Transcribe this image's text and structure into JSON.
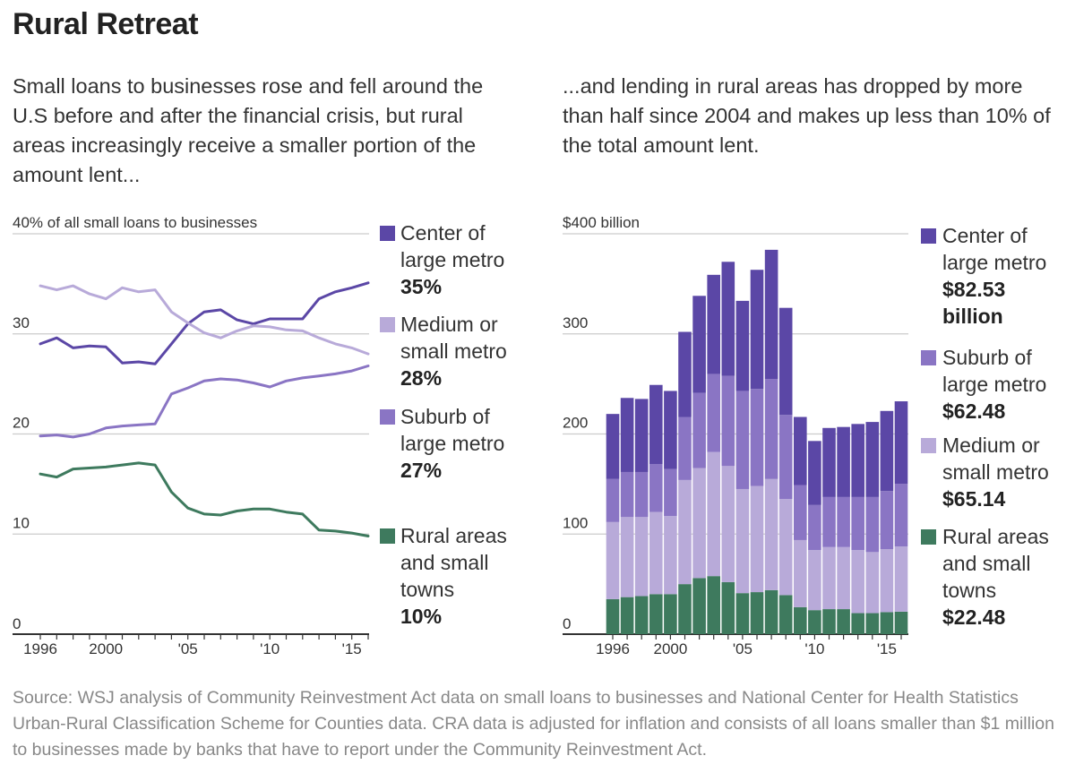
{
  "title": "Rural Retreat",
  "intro_left": "Small loans to businesses rose and fell around the U.S before and after the financial crisis, but rural areas increasingly receive a smaller portion of the amount lent...",
  "intro_right": "...and lending in rural areas has dropped by more than half since 2004 and makes up less than 10% of the total amount lent.",
  "source": "Source: WSJ analysis of Community Reinvestment Act data on small loans to businesses and National Center for Health Statistics Urban-Rural Classification Scheme for Counties data. CRA data is adjusted for inflation and consists of all loans smaller than $1 million to businesses made by banks that have to report under the Community Reinvestment Act.",
  "colors": {
    "center": "#5b47a6",
    "suburb": "#8a75c4",
    "medium": "#b8aad9",
    "rural": "#3e7a5e",
    "grid": "#cccccc",
    "axis": "#333333"
  },
  "chart_data": [
    {
      "type": "line",
      "x": [
        1996,
        1997,
        1998,
        1999,
        2000,
        2001,
        2002,
        2003,
        2004,
        2005,
        2006,
        2007,
        2008,
        2009,
        2010,
        2011,
        2012,
        2013,
        2014,
        2015,
        2016
      ],
      "xticks": [
        1996,
        2000,
        2005,
        2010,
        2015
      ],
      "xtick_labels": [
        "1996",
        "2000",
        "'05",
        "'10",
        "'15"
      ],
      "ylim": [
        0,
        40
      ],
      "yticks": [
        0,
        10,
        20,
        30,
        40
      ],
      "ytick_labels": [
        "0",
        "10",
        "20",
        "30",
        "40% of all small loans to businesses"
      ],
      "series": [
        {
          "key": "center",
          "name_lines": [
            "Center of",
            "large metro"
          ],
          "value_lines": [
            "35%"
          ],
          "values": [
            29.0,
            29.6,
            28.6,
            28.8,
            28.7,
            27.1,
            27.2,
            27.0,
            29.0,
            31.0,
            32.2,
            32.4,
            31.4,
            31.0,
            31.5,
            31.5,
            31.5,
            33.5,
            34.2,
            34.6,
            35.1
          ]
        },
        {
          "key": "medium",
          "name_lines": [
            "Medium or",
            "small metro"
          ],
          "value_lines": [
            "28%"
          ],
          "values": [
            34.8,
            34.4,
            34.8,
            34.0,
            33.5,
            34.6,
            34.2,
            34.4,
            32.2,
            31.1,
            30.1,
            29.6,
            30.3,
            30.8,
            30.7,
            30.4,
            30.3,
            29.6,
            29.0,
            28.6,
            28.0
          ]
        },
        {
          "key": "suburb",
          "name_lines": [
            "Suburb of",
            "large metro"
          ],
          "value_lines": [
            "27%"
          ],
          "values": [
            19.8,
            19.9,
            19.7,
            20.0,
            20.6,
            20.8,
            20.9,
            21.0,
            24.0,
            24.6,
            25.3,
            25.5,
            25.4,
            25.1,
            24.7,
            25.3,
            25.6,
            25.8,
            26.0,
            26.3,
            26.8
          ]
        },
        {
          "key": "rural",
          "name_lines": [
            "Rural areas",
            "and small",
            "towns"
          ],
          "value_lines": [
            "10%"
          ],
          "values": [
            16.0,
            15.7,
            16.5,
            16.6,
            16.7,
            16.9,
            17.1,
            16.9,
            14.2,
            12.6,
            12.0,
            11.9,
            12.3,
            12.5,
            12.5,
            12.2,
            12.0,
            10.4,
            10.3,
            10.1,
            9.8
          ]
        }
      ]
    },
    {
      "type": "bar",
      "stacked": true,
      "x": [
        1996,
        1997,
        1998,
        1999,
        2000,
        2001,
        2002,
        2003,
        2004,
        2005,
        2006,
        2007,
        2008,
        2009,
        2010,
        2011,
        2012,
        2013,
        2014,
        2015,
        2016
      ],
      "xticks": [
        1996,
        2000,
        2005,
        2010,
        2015
      ],
      "xtick_labels": [
        "1996",
        "2000",
        "'05",
        "'10",
        "'15"
      ],
      "ylim": [
        0,
        400
      ],
      "yticks": [
        0,
        100,
        200,
        300,
        400
      ],
      "ytick_labels": [
        "0",
        "100",
        "200",
        "300",
        "$400 billion"
      ],
      "series": [
        {
          "key": "rural",
          "name_lines": [
            "Rural areas",
            "and small",
            "towns"
          ],
          "value_lines": [
            "$22.48"
          ],
          "values": [
            35,
            37,
            38,
            40,
            40,
            50,
            56,
            58,
            52,
            41,
            42,
            44,
            39,
            27,
            24,
            25,
            25,
            21,
            21,
            22,
            22.48
          ]
        },
        {
          "key": "medium",
          "name_lines": [
            "Medium or",
            "small metro"
          ],
          "value_lines": [
            "$65.14"
          ],
          "values": [
            77,
            80,
            79,
            82,
            78,
            104,
            110,
            124,
            116,
            104,
            106,
            111,
            96,
            67,
            60,
            62,
            62,
            63,
            61,
            63,
            65.14
          ]
        },
        {
          "key": "suburb",
          "name_lines": [
            "Suburb of",
            "large metro"
          ],
          "value_lines": [
            "$62.48"
          ],
          "values": [
            43,
            45,
            45,
            48,
            47,
            63,
            75,
            78,
            90,
            98,
            97,
            100,
            84,
            55,
            45,
            50,
            50,
            53,
            55,
            58,
            62.48
          ]
        },
        {
          "key": "center",
          "name_lines": [
            "Center of",
            "large metro"
          ],
          "value_lines": [
            "$82.53",
            "billion"
          ],
          "values": [
            65,
            74,
            73,
            79,
            78,
            85,
            97,
            99,
            114,
            90,
            119,
            129,
            107,
            68,
            64,
            69,
            70,
            73,
            75,
            80,
            82.53
          ]
        }
      ]
    }
  ]
}
